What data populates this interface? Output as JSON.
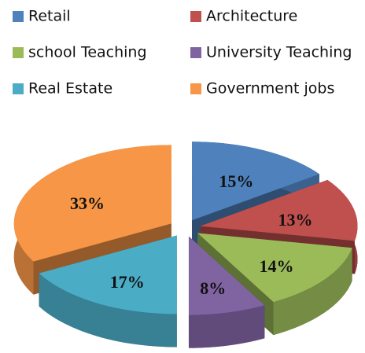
{
  "chart_data": {
    "type": "pie",
    "categories": [
      "Retail",
      "Architecture",
      "school Teaching",
      "University Teaching",
      "Real Estate",
      "Government jobs"
    ],
    "values": [
      15,
      13,
      14,
      8,
      17,
      33
    ],
    "value_labels": [
      "15%",
      "13%",
      "14%",
      "8%",
      "17%",
      "33%"
    ],
    "colors": [
      "#4f81bd",
      "#c0504d",
      "#9bbb59",
      "#8064a2",
      "#4bacc6",
      "#f79646"
    ],
    "legend": "top"
  }
}
